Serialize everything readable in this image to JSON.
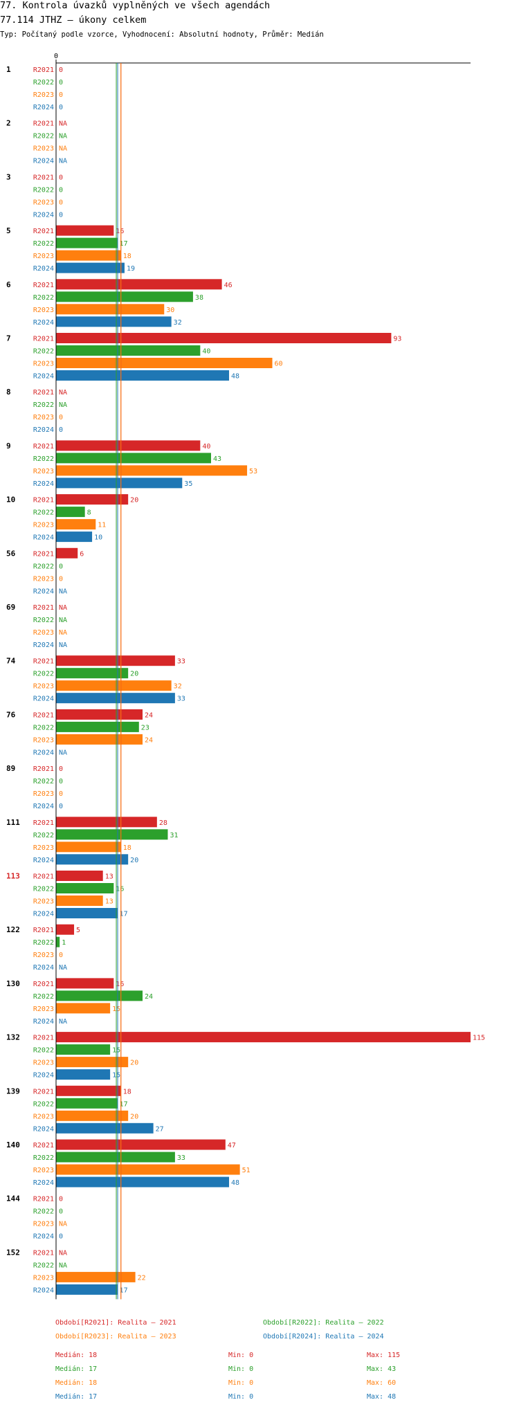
{
  "title_line1": "77. Kontrola úvazků vyplněných ve všech agendách",
  "title_line2": "77.114 JTHZ – úkony celkem",
  "subtitle": "Typ: Počítaný podle vzorce, Vyhodnocení: Absolutní hodnoty, Průměr: Medián",
  "colors": {
    "R2021": "#d62728",
    "R2022": "#2ca02c",
    "R2023": "#ff7f0e",
    "R2024": "#1f77b4",
    "highlight": "#d62728"
  },
  "chart_data": {
    "type": "bar",
    "orientation": "horizontal",
    "axis_zero_label": "0",
    "xlim": [
      0,
      115
    ],
    "series_names": [
      "R2021",
      "R2022",
      "R2023",
      "R2024"
    ],
    "median_lines": [
      18,
      17,
      18,
      17
    ],
    "groups": [
      {
        "label": "1",
        "highlight": false,
        "values": [
          0,
          0,
          0,
          0
        ]
      },
      {
        "label": "2",
        "highlight": false,
        "values": [
          null,
          null,
          null,
          null
        ]
      },
      {
        "label": "3",
        "highlight": false,
        "values": [
          0,
          0,
          0,
          0
        ]
      },
      {
        "label": "5",
        "highlight": false,
        "values": [
          16,
          17,
          18,
          19
        ]
      },
      {
        "label": "6",
        "highlight": false,
        "values": [
          46,
          38,
          30,
          32
        ]
      },
      {
        "label": "7",
        "highlight": false,
        "values": [
          93,
          40,
          60,
          48
        ]
      },
      {
        "label": "8",
        "highlight": false,
        "values": [
          null,
          null,
          0,
          0
        ]
      },
      {
        "label": "9",
        "highlight": false,
        "values": [
          40,
          43,
          53,
          35
        ]
      },
      {
        "label": "10",
        "highlight": false,
        "values": [
          20,
          8,
          11,
          10
        ]
      },
      {
        "label": "56",
        "highlight": false,
        "values": [
          6,
          0,
          0,
          null
        ]
      },
      {
        "label": "69",
        "highlight": false,
        "values": [
          null,
          null,
          null,
          null
        ]
      },
      {
        "label": "74",
        "highlight": false,
        "values": [
          33,
          20,
          32,
          33
        ]
      },
      {
        "label": "76",
        "highlight": false,
        "values": [
          24,
          23,
          24,
          null
        ]
      },
      {
        "label": "89",
        "highlight": false,
        "values": [
          0,
          0,
          0,
          0
        ]
      },
      {
        "label": "111",
        "highlight": false,
        "values": [
          28,
          31,
          18,
          20
        ]
      },
      {
        "label": "113",
        "highlight": true,
        "values": [
          13,
          16,
          13,
          17
        ]
      },
      {
        "label": "122",
        "highlight": false,
        "values": [
          5,
          1,
          0,
          null
        ]
      },
      {
        "label": "130",
        "highlight": false,
        "values": [
          16,
          24,
          15,
          null
        ]
      },
      {
        "label": "132",
        "highlight": false,
        "values": [
          115,
          15,
          20,
          15
        ]
      },
      {
        "label": "139",
        "highlight": false,
        "values": [
          18,
          17,
          20,
          27
        ]
      },
      {
        "label": "140",
        "highlight": false,
        "values": [
          47,
          33,
          51,
          48
        ]
      },
      {
        "label": "144",
        "highlight": false,
        "values": [
          0,
          0,
          null,
          0
        ]
      },
      {
        "label": "152",
        "highlight": false,
        "values": [
          null,
          null,
          22,
          17
        ]
      }
    ],
    "na_label": "NA"
  },
  "legend": [
    "Období[R2021]: Realita – 2021",
    "Období[R2022]: Realita – 2022",
    "Období[R2023]: Realita – 2023",
    "Období[R2024]: Realita – 2024"
  ],
  "stats": [
    {
      "median": "Medián: 18",
      "min": "Min: 0",
      "max": "Max: 115"
    },
    {
      "median": "Medián: 17",
      "min": "Min: 0",
      "max": "Max: 43"
    },
    {
      "median": "Medián: 18",
      "min": "Min: 0",
      "max": "Max: 60"
    },
    {
      "median": "Medián: 17",
      "min": "Min: 0",
      "max": "Max: 48"
    }
  ]
}
